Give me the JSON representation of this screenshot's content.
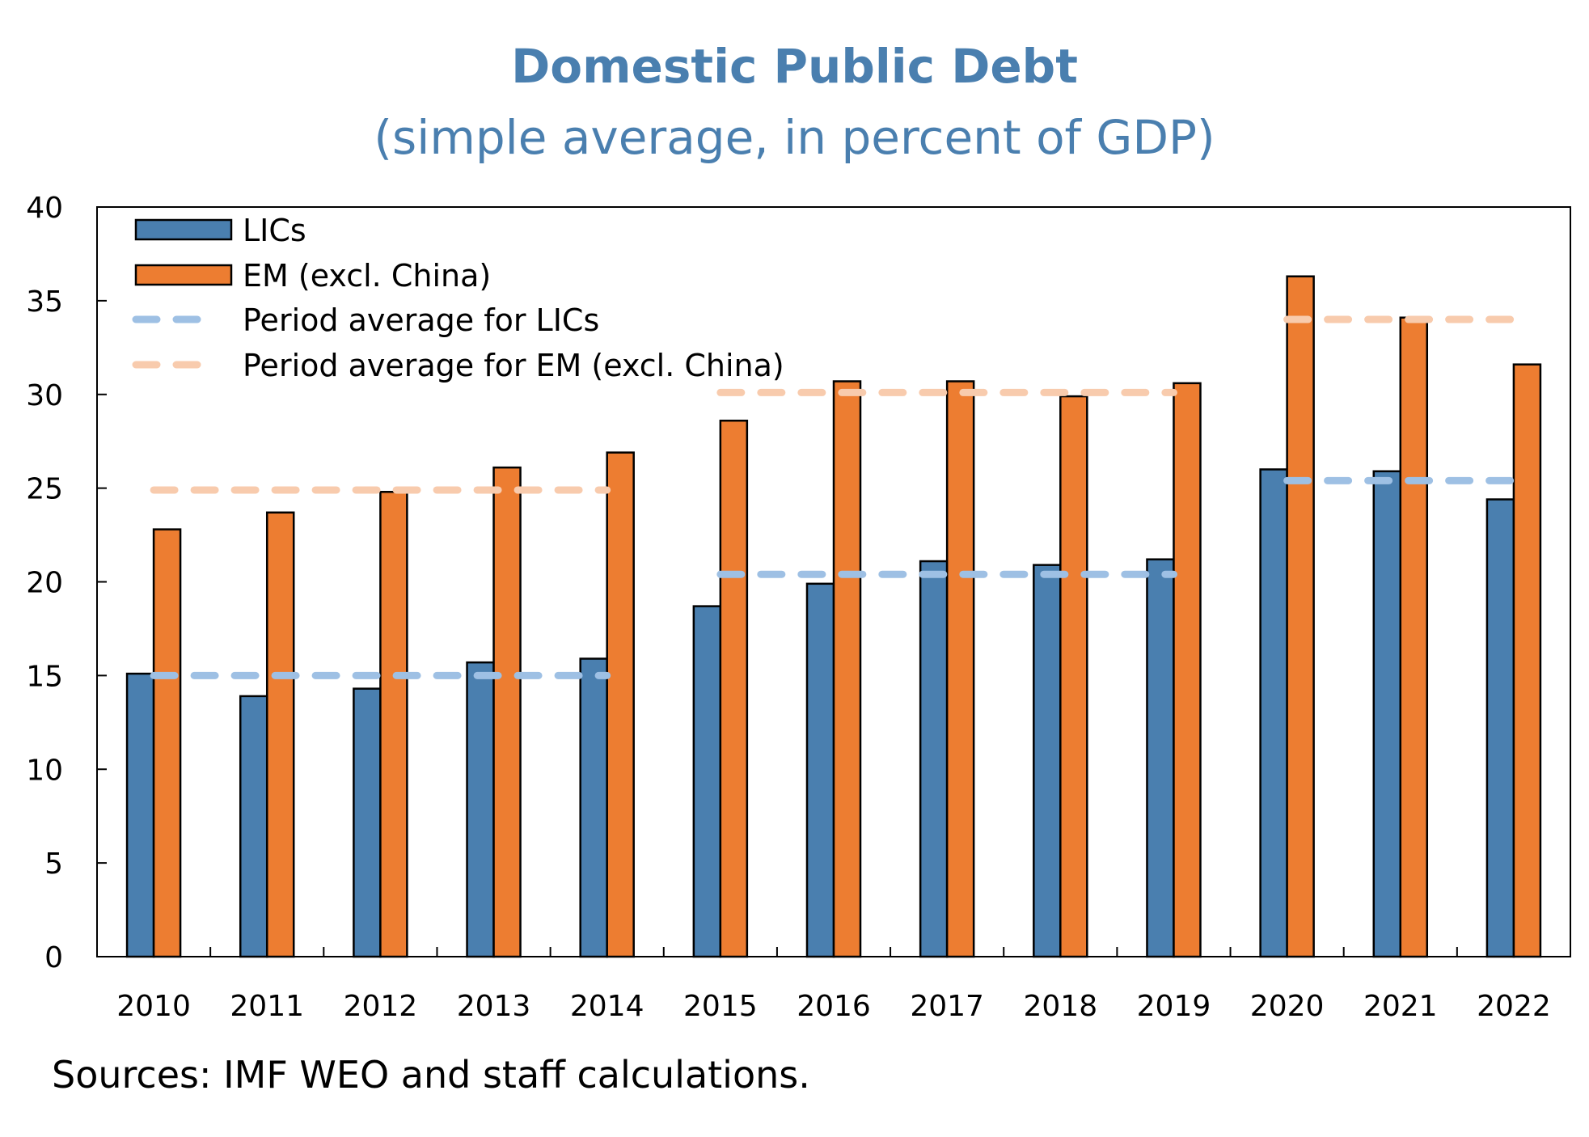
{
  "chart_data": {
    "type": "bar",
    "title": "Domestic Public Debt",
    "subtitle": "(simple average, in percent of GDP)",
    "categories": [
      "2010",
      "2011",
      "2012",
      "2013",
      "2014",
      "2015",
      "2016",
      "2017",
      "2018",
      "2019",
      "2020",
      "2021",
      "2022"
    ],
    "series": [
      {
        "name": "LICs",
        "color": "#4a7faf",
        "values": [
          15.1,
          13.9,
          14.3,
          15.7,
          15.9,
          18.7,
          19.9,
          21.1,
          20.9,
          21.2,
          26.0,
          25.9,
          24.4
        ]
      },
      {
        "name": "EM (excl. China)",
        "color": "#ed7d31",
        "values": [
          22.8,
          23.7,
          24.8,
          26.1,
          26.9,
          28.6,
          30.7,
          30.7,
          29.9,
          30.6,
          36.3,
          34.1,
          31.6
        ]
      }
    ],
    "period_averages": [
      {
        "name": "Period average for LICs",
        "color": "#9ec0e4",
        "segments": [
          {
            "start": "2010",
            "end": "2014",
            "value": 15.0
          },
          {
            "start": "2015",
            "end": "2019",
            "value": 20.4
          },
          {
            "start": "2020",
            "end": "2022",
            "value": 25.4
          }
        ]
      },
      {
        "name": "Period average for EM (excl. China)",
        "color": "#f8cbad",
        "segments": [
          {
            "start": "2010",
            "end": "2014",
            "value": 24.9
          },
          {
            "start": "2015",
            "end": "2019",
            "value": 30.1
          },
          {
            "start": "2020",
            "end": "2022",
            "value": 34.0
          }
        ]
      }
    ],
    "ylim": [
      0,
      40
    ],
    "yticks": [
      0,
      5,
      10,
      15,
      20,
      25,
      30,
      35,
      40
    ],
    "ytick_labels": [
      "0",
      "5",
      "10",
      "15",
      "20",
      "25",
      "30",
      "35",
      "40"
    ],
    "legend_position": "top-left",
    "grid": false,
    "xlabel": "",
    "ylabel": ""
  },
  "source_note": "Sources: IMF WEO and staff calculations."
}
